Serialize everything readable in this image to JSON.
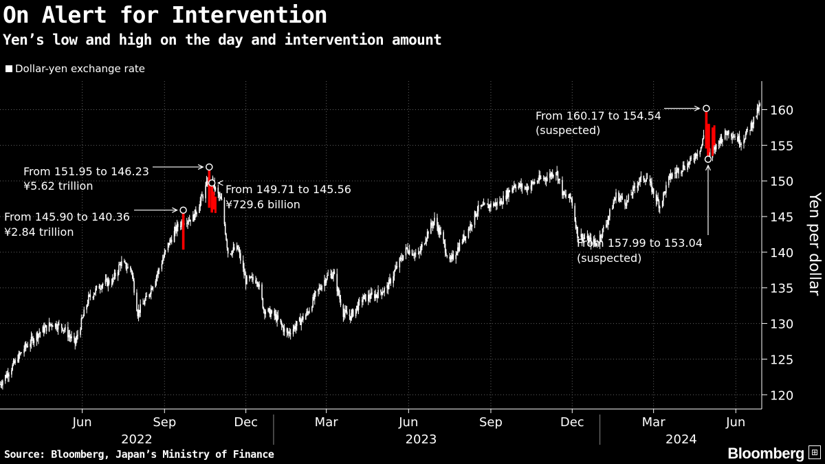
{
  "title": "On Alert for Intervention",
  "subtitle": "Yen’s low and high on the day and intervention amount",
  "source": "Source: Bloomberg, Japan’s Ministry of Finance",
  "brand": "Bloomberg",
  "colors": {
    "background": "#000000",
    "candles": "#ffffff",
    "intervention": "#ff0000",
    "grid": "#555555"
  },
  "chart_data": {
    "type": "candlestick",
    "legend": [
      {
        "label": "Dollar-yen exchange rate",
        "color": "#ffffff"
      }
    ],
    "ylabel": "Yen per dollar",
    "ylim": [
      118,
      164
    ],
    "y_ticks": [
      120,
      125,
      130,
      135,
      140,
      145,
      150,
      155,
      160
    ],
    "x_range": [
      "2022-03-01",
      "2024-06-30"
    ],
    "x_ticks": [
      {
        "date": "2022-06-01",
        "label": "Jun"
      },
      {
        "date": "2022-09-01",
        "label": "Sep"
      },
      {
        "date": "2022-12-01",
        "label": "Dec"
      },
      {
        "date": "2023-03-01",
        "label": "Mar"
      },
      {
        "date": "2023-06-01",
        "label": "Jun"
      },
      {
        "date": "2023-09-01",
        "label": "Sep"
      },
      {
        "date": "2023-12-01",
        "label": "Dec"
      },
      {
        "date": "2024-03-01",
        "label": "Mar"
      },
      {
        "date": "2024-06-01",
        "label": "Jun"
      }
    ],
    "year_labels": [
      {
        "date": "2022-08-01",
        "label": "2022"
      },
      {
        "date": "2023-06-15",
        "label": "2023"
      },
      {
        "date": "2024-04-01",
        "label": "2024"
      }
    ],
    "year_dividers": [
      "2023-01-01",
      "2024-01-01"
    ],
    "series_path": [
      [
        "2022-03-01",
        121.5
      ],
      [
        "2022-03-15",
        124
      ],
      [
        "2022-03-28",
        126.5
      ],
      [
        "2022-04-12",
        128.5
      ],
      [
        "2022-04-28",
        130
      ],
      [
        "2022-05-10",
        129.5
      ],
      [
        "2022-05-24",
        127.2
      ],
      [
        "2022-06-08",
        133.5
      ],
      [
        "2022-06-22",
        135.5
      ],
      [
        "2022-07-05",
        136
      ],
      [
        "2022-07-14",
        138.5
      ],
      [
        "2022-07-26",
        137.5
      ],
      [
        "2022-08-02",
        131.5
      ],
      [
        "2022-08-12",
        133.5
      ],
      [
        "2022-08-24",
        137
      ],
      [
        "2022-09-05",
        141
      ],
      [
        "2022-09-15",
        143.5
      ],
      [
        "2022-09-22",
        144.5
      ],
      [
        "2022-10-03",
        144.8
      ],
      [
        "2022-10-14",
        148
      ],
      [
        "2022-10-21",
        150.5
      ],
      [
        "2022-10-31",
        148
      ],
      [
        "2022-11-04",
        147
      ],
      [
        "2022-11-11",
        140
      ],
      [
        "2022-11-22",
        140.5
      ],
      [
        "2022-12-01",
        136
      ],
      [
        "2022-12-14",
        136.2
      ],
      [
        "2022-12-21",
        132
      ],
      [
        "2023-01-03",
        131
      ],
      [
        "2023-01-16",
        128.5
      ],
      [
        "2023-01-27",
        129.8
      ],
      [
        "2023-02-08",
        131.5
      ],
      [
        "2023-02-17",
        134
      ],
      [
        "2023-03-01",
        136.5
      ],
      [
        "2023-03-09",
        137
      ],
      [
        "2023-03-20",
        131.5
      ],
      [
        "2023-03-28",
        131
      ],
      [
        "2023-04-11",
        133.5
      ],
      [
        "2023-04-25",
        134
      ],
      [
        "2023-05-08",
        135
      ],
      [
        "2023-05-19",
        138
      ],
      [
        "2023-05-30",
        140.5
      ],
      [
        "2023-06-12",
        139.5
      ],
      [
        "2023-06-23",
        143
      ],
      [
        "2023-06-30",
        144.5
      ],
      [
        "2023-07-07",
        142.5
      ],
      [
        "2023-07-17",
        138.5
      ],
      [
        "2023-07-28",
        141
      ],
      [
        "2023-08-08",
        143.5
      ],
      [
        "2023-08-17",
        146
      ],
      [
        "2023-08-29",
        146.5
      ],
      [
        "2023-09-12",
        147
      ],
      [
        "2023-09-27",
        149.5
      ],
      [
        "2023-10-10",
        149
      ],
      [
        "2023-10-25",
        150.2
      ],
      [
        "2023-11-03",
        150.5
      ],
      [
        "2023-11-13",
        151.5
      ],
      [
        "2023-11-21",
        148
      ],
      [
        "2023-11-30",
        147.5
      ],
      [
        "2023-12-07",
        142.5
      ],
      [
        "2023-12-14",
        142
      ],
      [
        "2023-12-28",
        141.2
      ],
      [
        "2024-01-08",
        144
      ],
      [
        "2024-01-19",
        148
      ],
      [
        "2024-01-31",
        147
      ],
      [
        "2024-02-13",
        150
      ],
      [
        "2024-02-22",
        150.5
      ],
      [
        "2024-03-08",
        146.5
      ],
      [
        "2024-03-19",
        150.5
      ],
      [
        "2024-03-28",
        151.5
      ],
      [
        "2024-04-10",
        152.5
      ],
      [
        "2024-04-24",
        155
      ],
      [
        "2024-04-29",
        158.5
      ],
      [
        "2024-05-03",
        153.2
      ],
      [
        "2024-05-14",
        155.8
      ],
      [
        "2024-05-24",
        157
      ],
      [
        "2024-06-07",
        155.5
      ],
      [
        "2024-06-17",
        157.5
      ],
      [
        "2024-06-28",
        160.5
      ]
    ],
    "interventions": [
      {
        "date": "2022-09-22",
        "from": 145.9,
        "to": 140.36,
        "label": "From 145.90 to 140.36",
        "amount": "¥2.84 trillion"
      },
      {
        "date": "2022-10-21",
        "from": 151.95,
        "to": 146.23,
        "label": "From 151.95 to 146.23",
        "amount": "¥5.62 trillion"
      },
      {
        "date": "2022-10-24",
        "from": 149.71,
        "to": 145.56,
        "label": "From 149.71 to 145.56",
        "amount": "¥729.6 billion"
      },
      {
        "date": "2024-04-29",
        "from": 160.17,
        "to": 154.54,
        "label": "From 160.17 to 154.54",
        "amount": "(suspected)"
      },
      {
        "date": "2024-05-01",
        "from": 157.99,
        "to": 153.04,
        "label": "From 157.99 to 153.04",
        "amount": "(suspected)"
      }
    ]
  }
}
